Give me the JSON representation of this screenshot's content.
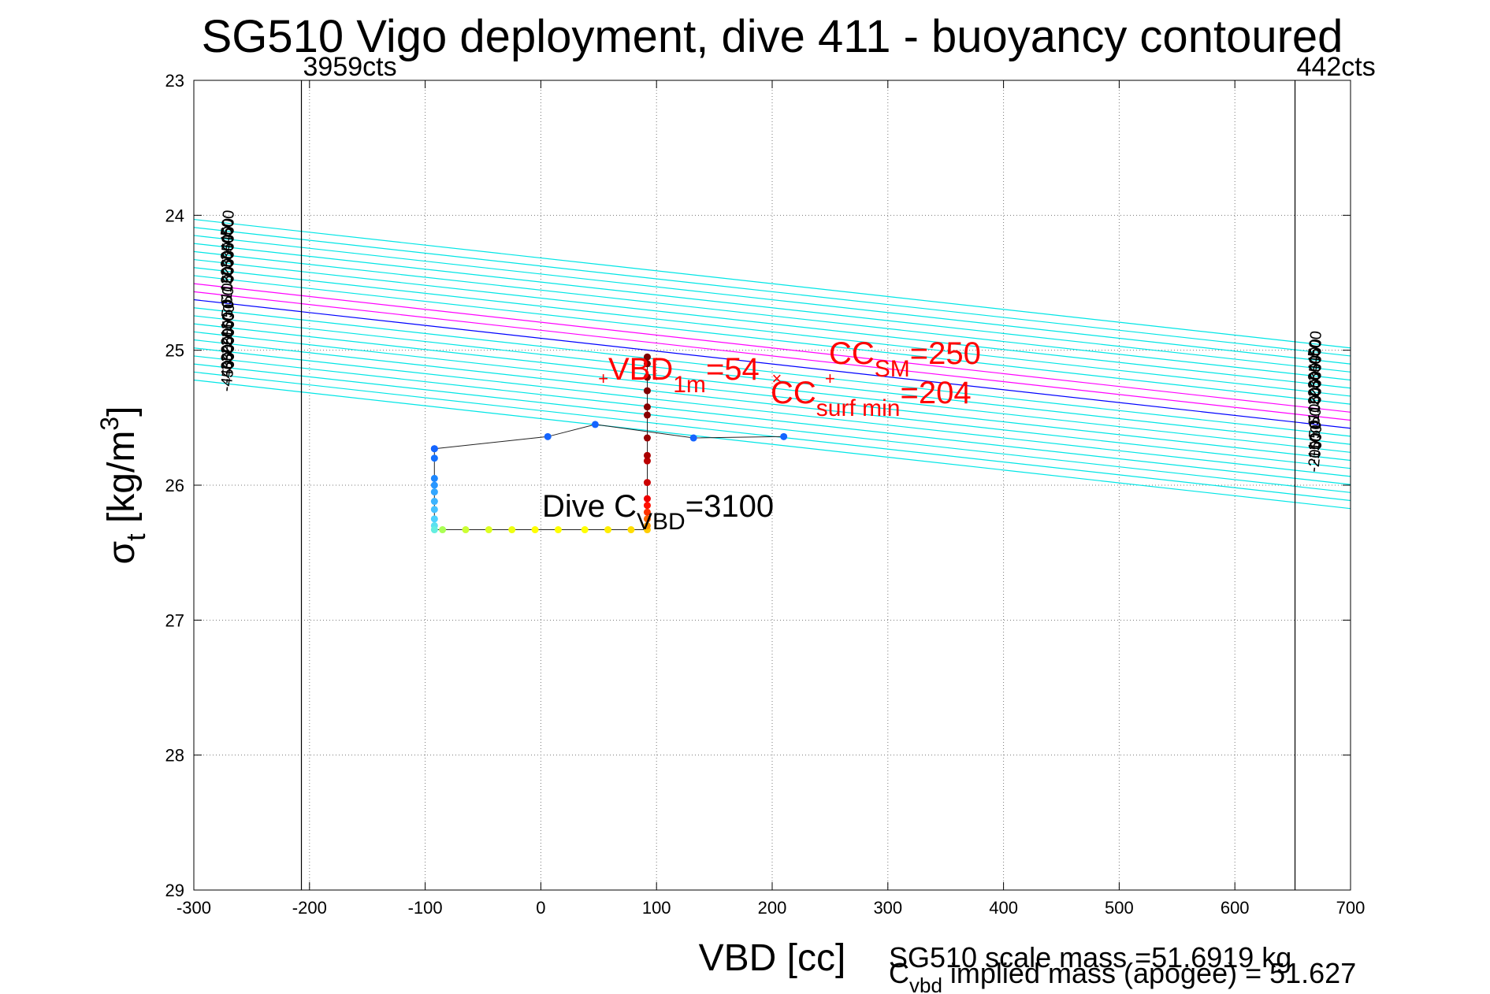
{
  "chart_data": {
    "type": "scatter",
    "title": "SG510 Vigo deployment, dive 411 - buoyancy contoured",
    "xlabel": "VBD [cc]",
    "ylabel": {
      "sigma": "σ",
      "sub": "t",
      "unit": "[kg/m",
      "sup": "3",
      "close": "]"
    },
    "xlim": [
      -300,
      700
    ],
    "ylim": [
      23,
      29
    ],
    "y_reversed": true,
    "grid": true,
    "x_ticks": [
      -300,
      -200,
      -100,
      0,
      100,
      200,
      300,
      400,
      500,
      600,
      700
    ],
    "x_tick_labels": [
      "-300",
      "-200",
      "-100",
      "0",
      "100",
      "200",
      "300",
      "400",
      "500",
      "600",
      "700"
    ],
    "y_ticks": [
      23,
      24,
      25,
      26,
      27,
      28,
      29
    ],
    "y_tick_labels": [
      "23",
      "24",
      "25",
      "26",
      "27",
      "28",
      "29"
    ],
    "limit_lines": [
      {
        "x": -207,
        "label": "3959cts"
      },
      {
        "x": 652,
        "label": "442cts"
      }
    ],
    "buoyancy_contours": {
      "levels": [
        -500,
        -450,
        -400,
        -350,
        -300,
        -250,
        -200,
        -150,
        -100,
        -50,
        0,
        50,
        100,
        150,
        200,
        250,
        300,
        350,
        400,
        450,
        500
      ],
      "top_labels": [
        {
          "level": -450,
          "text": "-450"
        },
        {
          "level": -400,
          "text": "-400"
        },
        {
          "level": -350,
          "text": "-350"
        },
        {
          "level": -300,
          "text": "-300"
        },
        {
          "level": -250,
          "text": "-250"
        },
        {
          "level": -200,
          "text": "-200"
        },
        {
          "level": -150,
          "text": "-150"
        },
        {
          "level": -100,
          "text": "-100"
        },
        {
          "level": -50,
          "text": "-50"
        },
        {
          "level": 0,
          "text": "0"
        },
        {
          "level": 50,
          "text": "50"
        },
        {
          "level": 100,
          "text": "100"
        },
        {
          "level": 150,
          "text": "150"
        },
        {
          "level": 200,
          "text": "200"
        },
        {
          "level": 250,
          "text": "250"
        },
        {
          "level": 300,
          "text": "300"
        },
        {
          "level": 350,
          "text": "350"
        },
        {
          "level": 400,
          "text": "400"
        },
        {
          "level": 450,
          "text": "450"
        },
        {
          "level": 500,
          "text": "500"
        }
      ],
      "bottom_labels": [
        {
          "level": -200,
          "text": "-200"
        },
        {
          "level": -150,
          "text": "-150"
        },
        {
          "level": -100,
          "text": "-100"
        },
        {
          "level": -50,
          "text": "-50"
        },
        {
          "level": 0,
          "text": "0"
        },
        {
          "level": 50,
          "text": "50"
        },
        {
          "level": 100,
          "text": "100"
        },
        {
          "level": 150,
          "text": "150"
        },
        {
          "level": 200,
          "text": "200"
        },
        {
          "level": 250,
          "text": "250"
        },
        {
          "level": 300,
          "text": "300"
        },
        {
          "level": 350,
          "text": "350"
        },
        {
          "level": 400,
          "text": "400"
        },
        {
          "level": 450,
          "text": "450"
        },
        {
          "level": 500,
          "text": "500"
        }
      ],
      "highlight": [
        {
          "level": 0,
          "color": "#0000ff"
        },
        {
          "level": 50,
          "color": "#ff00ff"
        },
        {
          "level": 100,
          "color": "#ff00ff"
        }
      ],
      "color": "#00e5e5"
    },
    "series": [
      {
        "role": "dive-path",
        "x": [
          -92,
          -92,
          -92,
          -92,
          -92,
          -92,
          -92,
          -92,
          -92,
          -92,
          -85,
          -65,
          -45,
          -25,
          -5,
          15,
          38,
          58,
          78,
          92
        ],
        "y": [
          25.73,
          25.8,
          25.95,
          26.0,
          26.05,
          26.12,
          26.18,
          26.25,
          26.3,
          26.33,
          26.33,
          26.33,
          26.33,
          26.33,
          26.33,
          26.33,
          26.33,
          26.33,
          26.33,
          26.33
        ],
        "colors": [
          "#1464ff",
          "#1470ff",
          "#1e88ff",
          "#2896ff",
          "#32a6ff",
          "#3cb4ff",
          "#46c2ff",
          "#4ed2ff",
          "#5ae0f0",
          "#64eee0",
          "#aaff55",
          "#ccff33",
          "#ddff22",
          "#eeff11",
          "#ffff00",
          "#ffff00",
          "#ffff00",
          "#ffee00",
          "#ffdd00",
          "#ffcc00"
        ]
      },
      {
        "role": "ascent",
        "x": [
          92,
          92,
          92,
          92,
          92,
          92,
          92,
          92,
          92,
          92,
          92,
          92,
          92,
          92,
          92
        ],
        "y": [
          26.3,
          26.25,
          26.2,
          26.15,
          26.1,
          25.98,
          25.82,
          25.78,
          25.65,
          25.48,
          25.42,
          25.3,
          25.2,
          25.1,
          25.05
        ],
        "colors": [
          "#ff9900",
          "#ff6600",
          "#ff3300",
          "#ff1100",
          "#ee0000",
          "#cc0000",
          "#bb0000",
          "#aa0000",
          "#990000",
          "#880000",
          "#880000",
          "#800000",
          "#800000",
          "#800000",
          "#800000"
        ]
      },
      {
        "role": "surface",
        "x": [
          -92,
          6,
          47,
          132,
          210
        ],
        "y": [
          25.73,
          25.64,
          25.55,
          25.65,
          25.64
        ],
        "colors": [
          "#1464ff",
          "#1464ff",
          "#1464ff",
          "#1464ff",
          "#1464ff"
        ]
      }
    ],
    "markers": [
      {
        "name": "vbd-1m-marker",
        "x": 54,
        "y": 25.22,
        "symbol": "+",
        "color": "#ff0000"
      },
      {
        "name": "cc-sm-marker",
        "x": 250,
        "y": 25.22,
        "symbol": "+",
        "color": "#ff0000"
      },
      {
        "name": "cc-surf-min-marker",
        "x": 204,
        "y": 25.22,
        "symbol": "×",
        "color": "#ff0000"
      }
    ],
    "annotations": {
      "vbd_1m": {
        "main": "VBD",
        "sub": "1m",
        "value": "=54",
        "color": "#ff0000"
      },
      "cc_sm": {
        "main": "CC",
        "sub": "SM",
        "value": "=250",
        "color": "#ff0000"
      },
      "cc_surf_min": {
        "main": "CC",
        "sub": "surf min",
        "value": "=204",
        "color": "#ff0000"
      },
      "dive_c_vbd": {
        "main": "Dive C",
        "sub": "VBD",
        "value": "=3100",
        "color": "#000000"
      }
    },
    "footer": {
      "scale_mass": "SG510 scale mass =51.6919 kg",
      "implied_mass_main": "C",
      "implied_mass_sub": "vbd",
      "implied_mass_rest": " implied mass (apogee) = 51.627"
    }
  }
}
